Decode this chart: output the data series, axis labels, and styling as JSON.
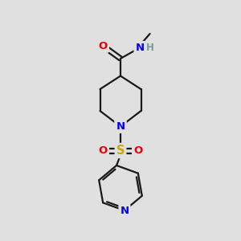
{
  "bg_color": "#e0e0e0",
  "bond_color": "#1a1a1a",
  "bond_width": 1.6,
  "atom_colors": {
    "C": "#1a1a1a",
    "N": "#0000ee",
    "O": "#ee0000",
    "S": "#ccaa00",
    "H": "#7a9a9a"
  },
  "font_size": 9.5,
  "fig_size": [
    3.0,
    3.0
  ],
  "dpi": 100,
  "xlim": [
    0,
    10
  ],
  "ylim": [
    0,
    10
  ]
}
